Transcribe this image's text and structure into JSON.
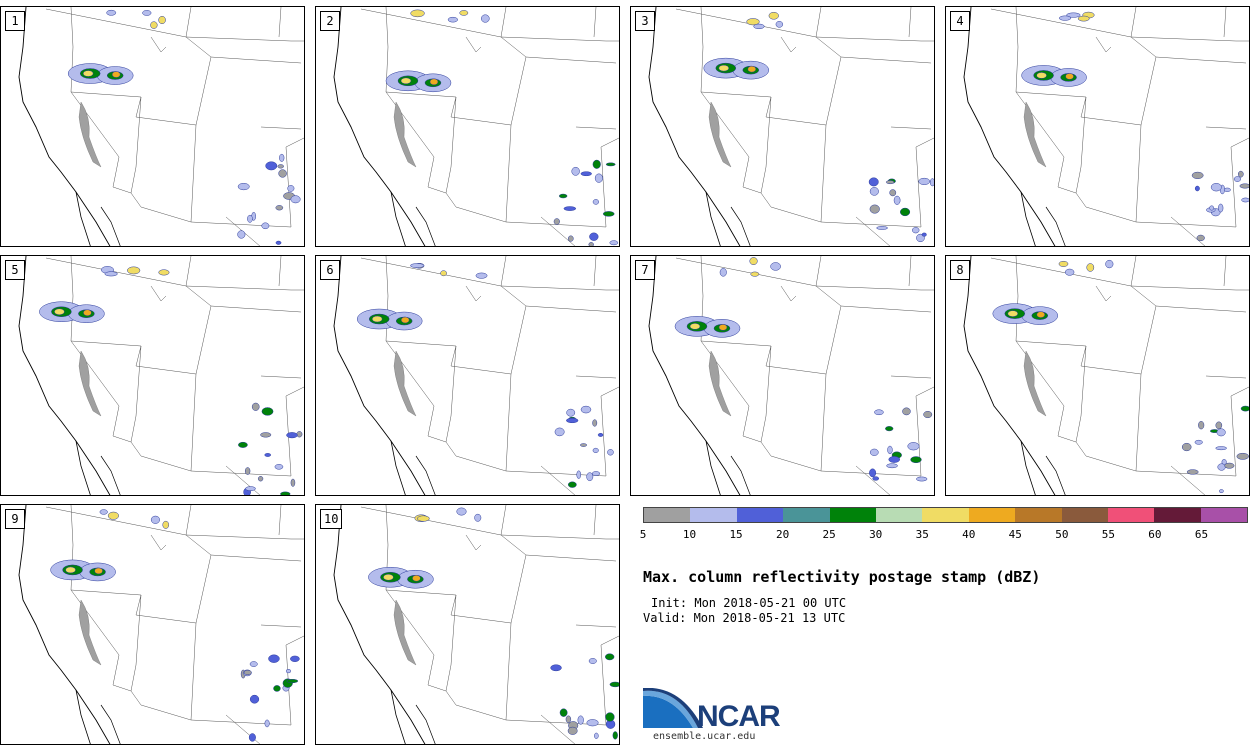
{
  "panels": [
    {
      "label": "1"
    },
    {
      "label": "2"
    },
    {
      "label": "3"
    },
    {
      "label": "4"
    },
    {
      "label": "5"
    },
    {
      "label": "6"
    },
    {
      "label": "7"
    },
    {
      "label": "8"
    },
    {
      "label": "9"
    },
    {
      "label": "10"
    }
  ],
  "colorbar": {
    "colors": [
      "#a0a0a0",
      "#b4bcec",
      "#5060d8",
      "#4a9498",
      "#00820a",
      "#b8dcb4",
      "#f0dc64",
      "#eeaa20",
      "#b87828",
      "#8a5a3c",
      "#f05078",
      "#641a38",
      "#a850a8"
    ],
    "ticks": [
      "5",
      "10",
      "15",
      "20",
      "25",
      "30",
      "35",
      "40",
      "45",
      "50",
      "55",
      "60",
      "65"
    ]
  },
  "title": "Max. column reflectivity postage stamp (dBZ)",
  "init": "Init: Mon 2018-05-21 00 UTC",
  "valid": "Valid: Mon 2018-05-21 13 UTC",
  "logo": {
    "text": "NCAR",
    "url": "ensemble.ucar.edu"
  }
}
